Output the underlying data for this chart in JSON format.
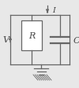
{
  "bg_color": "#e8e8e8",
  "line_color": "#666666",
  "text_color": "#444444",
  "V_label": "V",
  "R_label": "R",
  "C_label": "C",
  "I_label": "I",
  "lw": 0.9
}
